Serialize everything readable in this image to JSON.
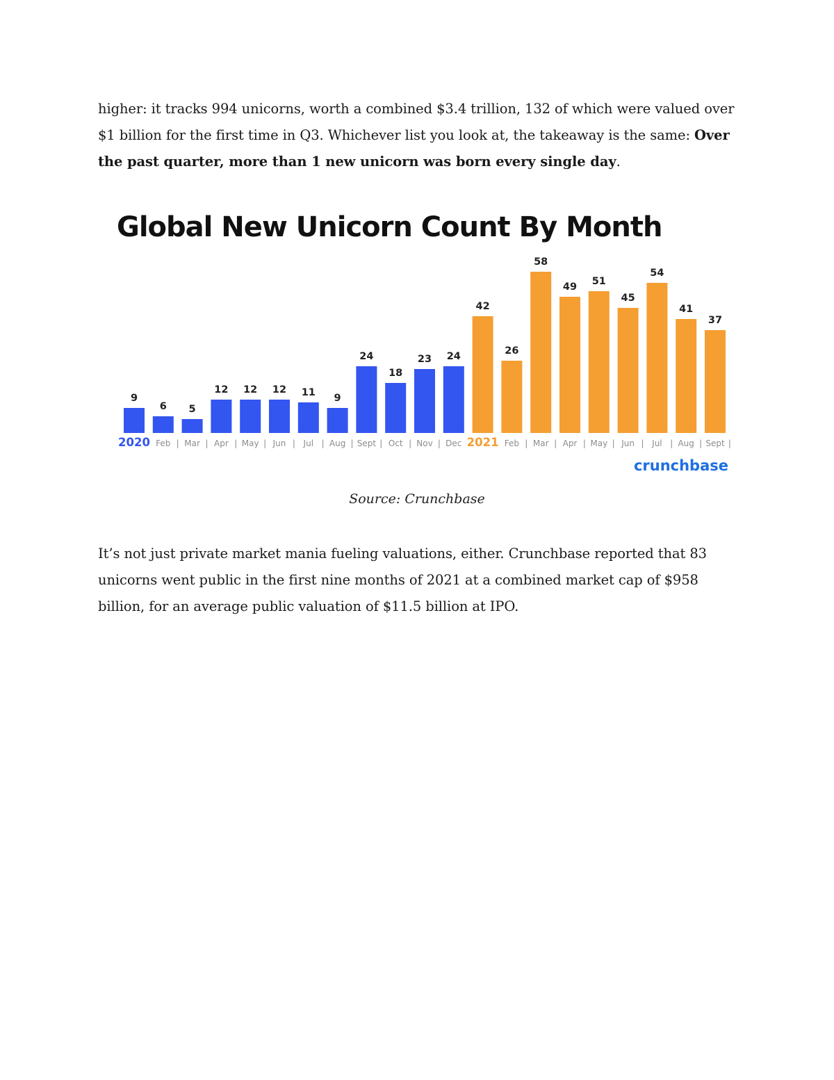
{
  "para1": {
    "text_before": "higher: it tracks 994 unicorns, worth a combined $3.4 trillion, 132 of which were valued over $1 billion for the first time in Q3. Whichever list you look at, the takeaway is the same: ",
    "bold": "Over the past quarter, more than 1 new unicorn was born every single day",
    "text_after": "."
  },
  "caption": "Source: Crunchbase",
  "para2": "It’s not just private market mania fueling valuations, either. Crunchbase reported that 83 unicorns went public in the first nine months of 2021 at a combined market cap of $958 billion, for an average public valuation of $11.5 billion at IPO.",
  "chart_logo": "crunchbase",
  "colors": {
    "blue": "#3355f0",
    "orange": "#f59e32",
    "logo": "#1f6fe0"
  },
  "chart_data": {
    "type": "bar",
    "title": "Global New Unicorn Count By Month",
    "xlabel": "",
    "ylabel": "",
    "ylim": [
      0,
      60
    ],
    "grid": false,
    "legend": "none",
    "categories": [
      "2020",
      "Feb",
      "Mar",
      "Apr",
      "May",
      "Jun",
      "Jul",
      "Aug",
      "Sept",
      "Oct",
      "Nov",
      "Dec",
      "2021",
      "Feb",
      "Mar",
      "Apr",
      "May",
      "Jun",
      "Jul",
      "Aug",
      "Sept"
    ],
    "values": [
      9,
      6,
      5,
      12,
      12,
      12,
      11,
      9,
      24,
      18,
      23,
      24,
      42,
      26,
      58,
      49,
      51,
      45,
      54,
      41,
      37
    ],
    "groups": [
      {
        "year": "2020",
        "color": "#3355f0",
        "count": 12
      },
      {
        "year": "2021",
        "color": "#f59e32",
        "count": 9
      }
    ]
  }
}
